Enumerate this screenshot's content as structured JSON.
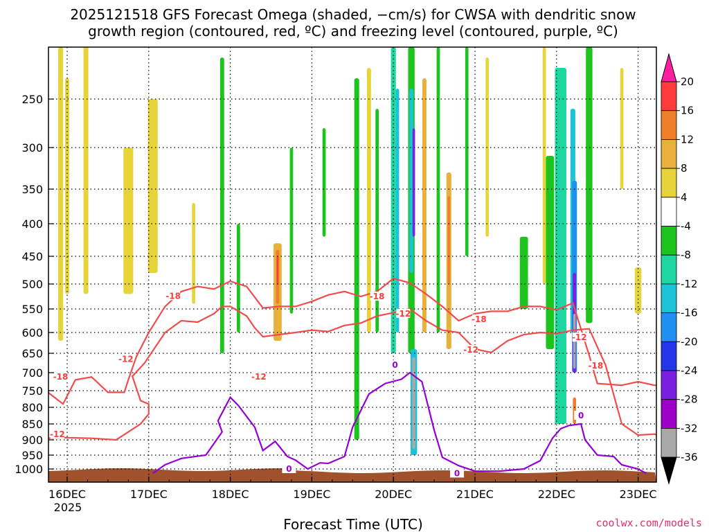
{
  "chart_data": {
    "type": "heatmap",
    "title_line1": "2025121518 GFS Forecast Omega (shaded, −cm/s) for CWSA with dendritic snow",
    "title_line2": "growth region (contoured, red, ºC) and freezing level (contoured, purple, ºC)",
    "xlabel": "Forecast Time (UTC)",
    "ylabel": "",
    "source": "coolwx.com/models",
    "x_ticks": [
      {
        "t": 0.0,
        "label": "16DEC"
      },
      {
        "t": 1.0,
        "label": "17DEC"
      },
      {
        "t": 2.0,
        "label": "18DEC"
      },
      {
        "t": 3.0,
        "label": "19DEC"
      },
      {
        "t": 4.0,
        "label": "20DEC"
      },
      {
        "t": 5.0,
        "label": "21DEC"
      },
      {
        "t": 6.0,
        "label": "22DEC"
      },
      {
        "t": 7.0,
        "label": "23DEC"
      }
    ],
    "x_sub_label": "2025",
    "xlim": [
      -0.25,
      7.5
    ],
    "ylim": [
      1030,
      200
    ],
    "y_ticks": [
      250,
      300,
      350,
      400,
      450,
      500,
      550,
      600,
      650,
      700,
      750,
      800,
      850,
      900,
      950,
      1000
    ],
    "grid": true,
    "colorbar": {
      "levels": [
        20,
        16,
        12,
        8,
        4,
        -4,
        -8,
        -12,
        -16,
        -20,
        -24,
        -28,
        -32,
        -36
      ],
      "colors": [
        "#ff1ea0",
        "#ff3a3a",
        "#ef7f2b",
        "#e7b13b",
        "#e6d43a",
        "#ffffff",
        "#1dc41d",
        "#1ed6a0",
        "#1cc2d6",
        "#1f8ff0",
        "#2536e8",
        "#7a1ee0",
        "#9b00c8",
        "#a9a9a9",
        "#000000"
      ]
    },
    "dgz_contours": [
      {
        "label": "-18",
        "points": [
          [
            -0.25,
            752
          ],
          [
            -0.05,
            790
          ],
          [
            0.1,
            720
          ],
          [
            0.3,
            712
          ],
          [
            0.5,
            755
          ],
          [
            0.7,
            755
          ],
          [
            0.75,
            720
          ],
          [
            0.85,
            658
          ],
          [
            1.0,
            600
          ],
          [
            1.2,
            545
          ],
          [
            1.4,
            515
          ],
          [
            1.6,
            505
          ],
          [
            1.8,
            510
          ],
          [
            2.0,
            495
          ],
          [
            2.2,
            505
          ],
          [
            2.4,
            548
          ],
          [
            2.6,
            545
          ],
          [
            2.8,
            545
          ],
          [
            3.0,
            535
          ],
          [
            3.2,
            522
          ],
          [
            3.4,
            515
          ],
          [
            3.6,
            525
          ],
          [
            3.8,
            515
          ],
          [
            4.0,
            490
          ],
          [
            4.2,
            498
          ],
          [
            4.4,
            520
          ],
          [
            4.6,
            545
          ],
          [
            4.8,
            575
          ],
          [
            5.0,
            560
          ],
          [
            5.2,
            555
          ],
          [
            5.4,
            555
          ],
          [
            5.6,
            545
          ],
          [
            5.8,
            545
          ],
          [
            6.0,
            552
          ],
          [
            6.2,
            538
          ],
          [
            6.4,
            655
          ],
          [
            6.5,
            730
          ],
          [
            6.8,
            735
          ],
          [
            7.0,
            725
          ],
          [
            7.2,
            735
          ],
          [
            7.5,
            735
          ]
        ]
      },
      {
        "label": "-12",
        "points": [
          [
            -0.25,
            895
          ],
          [
            0.0,
            893
          ],
          [
            0.3,
            895
          ],
          [
            0.6,
            900
          ],
          [
            0.9,
            850
          ],
          [
            1.0,
            820
          ],
          [
            1.0,
            790
          ],
          [
            0.9,
            780
          ],
          [
            0.8,
            710
          ],
          [
            0.95,
            675
          ],
          [
            1.2,
            600
          ],
          [
            1.4,
            575
          ],
          [
            1.6,
            578
          ],
          [
            1.8,
            560
          ],
          [
            1.9,
            545
          ],
          [
            2.0,
            545
          ],
          [
            2.2,
            565
          ],
          [
            2.3,
            590
          ],
          [
            2.4,
            610
          ],
          [
            2.6,
            605
          ],
          [
            2.8,
            600
          ],
          [
            3.0,
            595
          ],
          [
            3.2,
            598
          ],
          [
            3.4,
            585
          ],
          [
            3.6,
            580
          ],
          [
            3.8,
            565
          ],
          [
            4.0,
            558
          ],
          [
            4.2,
            550
          ],
          [
            4.4,
            575
          ],
          [
            4.6,
            595
          ],
          [
            4.8,
            600
          ],
          [
            5.0,
            640
          ],
          [
            5.2,
            648
          ],
          [
            5.4,
            620
          ],
          [
            5.6,
            605
          ],
          [
            5.8,
            600
          ],
          [
            6.0,
            603
          ],
          [
            6.2,
            595
          ],
          [
            6.4,
            592
          ],
          [
            6.6,
            680
          ],
          [
            6.8,
            850
          ],
          [
            7.0,
            885
          ],
          [
            7.2,
            882
          ],
          [
            7.5,
            905
          ]
        ]
      }
    ],
    "freezing_level": {
      "label": "0",
      "points": [
        [
          1.05,
          1010
        ],
        [
          1.2,
          985
        ],
        [
          1.4,
          962
        ],
        [
          1.7,
          950
        ],
        [
          1.9,
          875
        ],
        [
          1.85,
          840
        ],
        [
          2.0,
          770
        ],
        [
          2.1,
          795
        ],
        [
          2.3,
          860
        ],
        [
          2.4,
          935
        ],
        [
          2.55,
          905
        ],
        [
          2.7,
          955
        ],
        [
          2.8,
          968
        ],
        [
          2.95,
          1000
        ],
        [
          3.1,
          978
        ],
        [
          3.2,
          980
        ],
        [
          3.4,
          955
        ],
        [
          3.5,
          860
        ],
        [
          3.7,
          760
        ],
        [
          3.9,
          730
        ],
        [
          4.1,
          718
        ],
        [
          4.2,
          700
        ],
        [
          4.35,
          725
        ],
        [
          4.5,
          870
        ],
        [
          4.6,
          958
        ],
        [
          4.8,
          988
        ],
        [
          5.0,
          1005
        ],
        [
          5.3,
          1005
        ],
        [
          5.6,
          1000
        ],
        [
          5.8,
          970
        ],
        [
          5.95,
          895
        ],
        [
          6.05,
          865
        ],
        [
          6.15,
          855
        ],
        [
          6.3,
          850
        ],
        [
          6.35,
          900
        ],
        [
          6.5,
          950
        ],
        [
          6.7,
          955
        ],
        [
          6.8,
          985
        ],
        [
          7.0,
          1000
        ],
        [
          7.1,
          1010
        ]
      ]
    },
    "contour_labels": [
      {
        "text": "-18",
        "t": -0.08,
        "p": 712,
        "color": "#ff3a3a"
      },
      {
        "text": "-12",
        "t": -0.12,
        "p": 883,
        "color": "#ff3a3a"
      },
      {
        "text": "-12",
        "t": 0.72,
        "p": 665,
        "color": "#ff3a3a"
      },
      {
        "text": "-18",
        "t": 1.3,
        "p": 524,
        "color": "#ff3a3a"
      },
      {
        "text": "-12",
        "t": 2.35,
        "p": 712,
        "color": "#ff3a3a"
      },
      {
        "text": "-18",
        "t": 3.8,
        "p": 525,
        "color": "#ff3a3a"
      },
      {
        "text": "-12",
        "t": 4.12,
        "p": 560,
        "color": "#ff3a3a"
      },
      {
        "text": "-18",
        "t": 5.05,
        "p": 572,
        "color": "#ff3a3a"
      },
      {
        "text": "-12",
        "t": 4.95,
        "p": 642,
        "color": "#ff3a3a"
      },
      {
        "text": "-12",
        "t": 6.28,
        "p": 612,
        "color": "#ff3a3a"
      },
      {
        "text": "-18",
        "t": 6.48,
        "p": 682,
        "color": "#ff3a3a"
      },
      {
        "text": "0",
        "t": 4.02,
        "p": 680,
        "color": "#9b00c8"
      },
      {
        "text": "0",
        "t": 2.72,
        "p": 1000,
        "color": "#9b00c8"
      },
      {
        "text": "0",
        "t": 4.78,
        "p": 1010,
        "color": "#9b00c8"
      },
      {
        "text": "0",
        "t": 6.3,
        "p": 825,
        "color": "#9b00c8"
      }
    ],
    "omega_patches": [
      {
        "t": -0.08,
        "p_top": 200,
        "p_bot": 620,
        "w": 0.06,
        "value": 4
      },
      {
        "t": 0.0,
        "p_top": 230,
        "p_bot": 520,
        "w": 0.05,
        "value": 4
      },
      {
        "t": 0.23,
        "p_top": 150,
        "p_bot": 520,
        "w": 0.06,
        "value": 4
      },
      {
        "t": 0.75,
        "p_top": 300,
        "p_bot": 520,
        "w": 0.12,
        "value": 4
      },
      {
        "t": 1.05,
        "p_top": 250,
        "p_bot": 480,
        "w": 0.12,
        "value": 4
      },
      {
        "t": 1.55,
        "p_top": 370,
        "p_bot": 540,
        "w": 0.04,
        "value": 4
      },
      {
        "t": 1.9,
        "p_top": 210,
        "p_bot": 650,
        "w": 0.05,
        "value": -8
      },
      {
        "t": 2.1,
        "p_top": 400,
        "p_bot": 600,
        "w": 0.04,
        "value": -8
      },
      {
        "t": 2.58,
        "p_top": 430,
        "p_bot": 620,
        "w": 0.1,
        "value": 8
      },
      {
        "t": 2.58,
        "p_top": 440,
        "p_bot": 540,
        "w": 0.04,
        "value": 12
      },
      {
        "t": 2.58,
        "p_top": 450,
        "p_bot": 500,
        "w": 0.02,
        "value": 16
      },
      {
        "t": 2.75,
        "p_top": 300,
        "p_bot": 560,
        "w": 0.04,
        "value": -8
      },
      {
        "t": 3.15,
        "p_top": 280,
        "p_bot": 420,
        "w": 0.04,
        "value": -8
      },
      {
        "t": 3.55,
        "p_top": 230,
        "p_bot": 900,
        "w": 0.06,
        "value": -8
      },
      {
        "t": 3.7,
        "p_top": 220,
        "p_bot": 600,
        "w": 0.05,
        "value": 4
      },
      {
        "t": 3.8,
        "p_top": 260,
        "p_bot": 600,
        "w": 0.04,
        "value": -8
      },
      {
        "t": 4.0,
        "p_top": 200,
        "p_bot": 650,
        "w": 0.06,
        "value": -12
      },
      {
        "t": 4.05,
        "p_top": 240,
        "p_bot": 600,
        "w": 0.04,
        "value": -16
      },
      {
        "t": 4.22,
        "p_top": 200,
        "p_bot": 650,
        "w": 0.08,
        "value": -8
      },
      {
        "t": 4.22,
        "p_top": 240,
        "p_bot": 480,
        "w": 0.05,
        "value": -16
      },
      {
        "t": 4.25,
        "p_top": 280,
        "p_bot": 420,
        "w": 0.03,
        "value": -28
      },
      {
        "t": 4.25,
        "p_top": 640,
        "p_bot": 950,
        "w": 0.08,
        "value": -16
      },
      {
        "t": 4.25,
        "p_top": 660,
        "p_bot": 930,
        "w": 0.04,
        "value": -36
      },
      {
        "t": 4.38,
        "p_top": 230,
        "p_bot": 600,
        "w": 0.05,
        "value": 8
      },
      {
        "t": 4.55,
        "p_top": 200,
        "p_bot": 600,
        "w": 0.04,
        "value": -8
      },
      {
        "t": 4.68,
        "p_top": 330,
        "p_bot": 640,
        "w": 0.06,
        "value": 8
      },
      {
        "t": 4.68,
        "p_top": 360,
        "p_bot": 500,
        "w": 0.03,
        "value": 12
      },
      {
        "t": 4.9,
        "p_top": 200,
        "p_bot": 450,
        "w": 0.04,
        "value": -8
      },
      {
        "t": 5.15,
        "p_top": 210,
        "p_bot": 420,
        "w": 0.04,
        "value": 4
      },
      {
        "t": 5.6,
        "p_top": 420,
        "p_bot": 550,
        "w": 0.1,
        "value": -8
      },
      {
        "t": 5.85,
        "p_top": 200,
        "p_bot": 500,
        "w": 0.04,
        "value": 4
      },
      {
        "t": 5.92,
        "p_top": 310,
        "p_bot": 640,
        "w": 0.1,
        "value": -8
      },
      {
        "t": 6.05,
        "p_top": 220,
        "p_bot": 850,
        "w": 0.14,
        "value": -12
      },
      {
        "t": 6.2,
        "p_top": 260,
        "p_bot": 600,
        "w": 0.06,
        "value": -16
      },
      {
        "t": 6.22,
        "p_top": 340,
        "p_bot": 700,
        "w": 0.06,
        "value": -20
      },
      {
        "t": 6.22,
        "p_top": 480,
        "p_bot": 700,
        "w": 0.04,
        "value": -28
      },
      {
        "t": 6.22,
        "p_top": 560,
        "p_bot": 690,
        "w": 0.03,
        "value": -36
      },
      {
        "t": 6.22,
        "p_top": 770,
        "p_bot": 850,
        "w": 0.04,
        "value": 12
      },
      {
        "t": 6.4,
        "p_top": 200,
        "p_bot": 580,
        "w": 0.08,
        "value": -8
      },
      {
        "t": 6.8,
        "p_top": 220,
        "p_bot": 350,
        "w": 0.04,
        "value": 4
      },
      {
        "t": 7.0,
        "p_top": 470,
        "p_bot": 560,
        "w": 0.08,
        "value": 4
      }
    ]
  }
}
